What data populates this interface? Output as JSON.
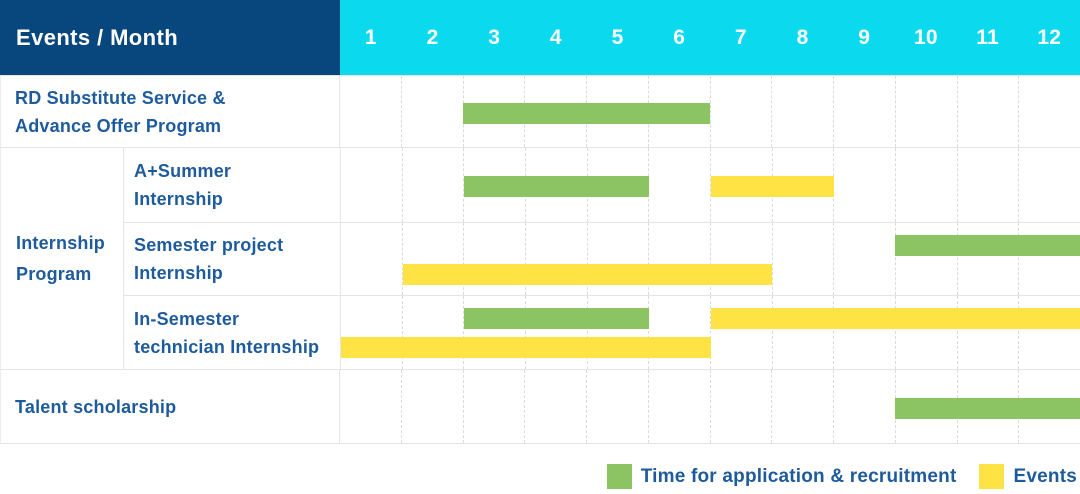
{
  "header": {
    "corner_label": "Events / Month",
    "months": [
      "1",
      "2",
      "3",
      "4",
      "5",
      "6",
      "7",
      "8",
      "9",
      "10",
      "11",
      "12"
    ]
  },
  "group": {
    "label": "Internship Program",
    "label_lines": [
      "Internship",
      "Program"
    ]
  },
  "rows": [
    {
      "label_lines": [
        "RD Substitute Service &",
        "Advance Offer Program"
      ]
    },
    {
      "label_lines": [
        "A+Summer",
        "Internship"
      ]
    },
    {
      "label_lines": [
        "Semester project",
        "Internship"
      ]
    },
    {
      "label_lines": [
        "In-Semester",
        "technician Internship"
      ]
    },
    {
      "label_lines": [
        "Talent scholarship"
      ]
    }
  ],
  "legend": {
    "items": [
      {
        "label": "Time for application & recruitment",
        "color_key": "green"
      },
      {
        "label": "Events",
        "color_key": "yellow"
      }
    ]
  },
  "colors": {
    "navy": "#07477D",
    "cyan": "#0BD9EE",
    "green": "#8CC363",
    "yellow": "#FFE345",
    "text_blue": "#1E5B9D",
    "grid_solid": "#E5E5E5",
    "grid_dashed": "#DBDBDB"
  },
  "chart_data": {
    "type": "bar",
    "subtype": "gantt-timeline",
    "title": "Events / Month",
    "x_unit": "month",
    "x_categories": [
      "1",
      "2",
      "3",
      "4",
      "5",
      "6",
      "7",
      "8",
      "9",
      "10",
      "11",
      "12"
    ],
    "x_range": [
      1,
      12
    ],
    "grid": "dashed-vertical-per-month",
    "legend_position": "bottom-right",
    "series_legend": [
      {
        "name": "Time for application & recruitment",
        "color_key": "green"
      },
      {
        "name": "Events",
        "color_key": "yellow"
      }
    ],
    "rows": [
      {
        "label": "RD Substitute Service & Advance Offer Program",
        "group": null,
        "spans": [
          {
            "series": "Time for application & recruitment",
            "color_key": "green",
            "start_month": 3,
            "end_month": 6,
            "lane": "center"
          }
        ]
      },
      {
        "label": "A+Summer Internship",
        "group": "Internship Program",
        "spans": [
          {
            "series": "Time for application & recruitment",
            "color_key": "green",
            "start_month": 3,
            "end_month": 5,
            "lane": "center"
          },
          {
            "series": "Events",
            "color_key": "yellow",
            "start_month": 7,
            "end_month": 8,
            "lane": "center"
          }
        ]
      },
      {
        "label": "Semester project Internship",
        "group": "Internship Program",
        "spans": [
          {
            "series": "Time for application & recruitment",
            "color_key": "green",
            "start_month": 10,
            "end_month": 12,
            "lane": "upper"
          },
          {
            "series": "Events",
            "color_key": "yellow",
            "start_month": 2,
            "end_month": 7,
            "lane": "lower"
          }
        ]
      },
      {
        "label": "In-Semester technician Internship",
        "group": "Internship Program",
        "spans": [
          {
            "series": "Time for application & recruitment",
            "color_key": "green",
            "start_month": 3,
            "end_month": 5,
            "lane": "upper"
          },
          {
            "series": "Events",
            "color_key": "yellow",
            "start_month": 7,
            "end_month": 12,
            "lane": "upper"
          },
          {
            "series": "Events",
            "color_key": "yellow",
            "start_month": 1,
            "end_month": 6,
            "lane": "lower"
          }
        ]
      },
      {
        "label": "Talent scholarship",
        "group": null,
        "spans": [
          {
            "series": "Time for application & recruitment",
            "color_key": "green",
            "start_month": 10,
            "end_month": 12,
            "lane": "center"
          }
        ]
      }
    ]
  }
}
